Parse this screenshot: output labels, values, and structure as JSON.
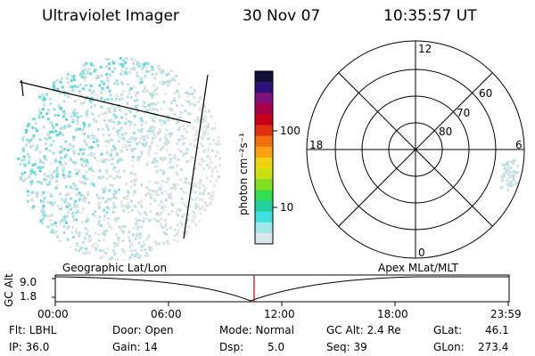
{
  "header": {
    "instrument": "Ultraviolet Imager",
    "date": "30 Nov 07",
    "time": "10:35:57 UT"
  },
  "colorbar": {
    "unit_label": "photon cm⁻²s⁻¹",
    "ticks": [
      "100",
      "10"
    ],
    "colors": [
      "#101038",
      "#30107a",
      "#80107a",
      "#a8004a",
      "#c8001a",
      "#e03010",
      "#f07010",
      "#f8a010",
      "#f0d010",
      "#c8e010",
      "#80e020",
      "#30e050",
      "#20d0a0",
      "#40e0e0",
      "#a0e8e8",
      "#d8e8e8"
    ]
  },
  "polar_plot": {
    "mlt_labels": [
      "12",
      "18",
      "6",
      "0"
    ],
    "mlat_labels": [
      "60",
      "70",
      "80"
    ]
  },
  "timeline": {
    "left_title": "Geographic Lat/Lon",
    "right_title": "Apex MLat/MLT",
    "y_label": "GC Alt",
    "y_ticks": [
      "9.0",
      "1.8"
    ],
    "x_ticks": [
      "00:00",
      "06:00",
      "12:00",
      "18:00",
      "23:59"
    ],
    "current_marker_color": "#c00000"
  },
  "info": {
    "flt": "Flt: LBHL",
    "ip": "IP: 36.0",
    "door": "Door: Open",
    "gain": "Gain: 14",
    "mode": "Mode: Normal",
    "dsp_label": "Dsp:",
    "dsp_value": "5.0",
    "gcalt": "GC Alt: 2.4 Re",
    "seq": "Seq: 39",
    "glat_label": "GLat:",
    "glat_value": "46.1",
    "glon_label": "GLon:",
    "glon_value": "273.4"
  }
}
